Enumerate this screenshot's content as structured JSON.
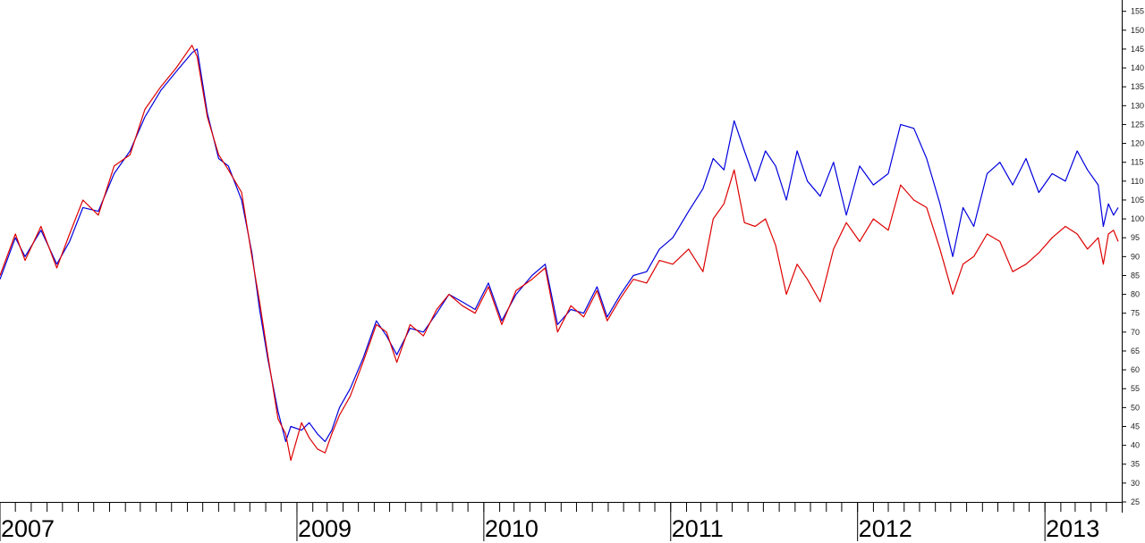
{
  "chart_data": {
    "type": "line",
    "title": "",
    "xlabel": "",
    "ylabel": "",
    "x_range": [
      "2007-06-01",
      "2013-05-24"
    ],
    "ylim": [
      25,
      158
    ],
    "y_axis_side": "right",
    "y_ticks": [
      25,
      30,
      35,
      40,
      45,
      50,
      55,
      60,
      65,
      70,
      75,
      80,
      85,
      90,
      95,
      100,
      105,
      110,
      115,
      120,
      125,
      130,
      135,
      140,
      145,
      150,
      155
    ],
    "x_tick_labels": [
      {
        "date": "2007-06-01",
        "label": "2007"
      },
      {
        "date": "2009-01-01",
        "label": "2009"
      },
      {
        "date": "2010-01-01",
        "label": "2010"
      },
      {
        "date": "2011-01-01",
        "label": "2011"
      },
      {
        "date": "2012-01-01",
        "label": "2012"
      },
      {
        "date": "2013-01-01",
        "label": "2013"
      }
    ],
    "grid": false,
    "legend": "none",
    "series": [
      {
        "color": "#0000dd",
        "points": [
          [
            "2007-06-01",
            84
          ],
          [
            "2007-07-01",
            95
          ],
          [
            "2007-07-20",
            90
          ],
          [
            "2007-08-20",
            97
          ],
          [
            "2007-09-20",
            88
          ],
          [
            "2007-10-15",
            94
          ],
          [
            "2007-11-10",
            103
          ],
          [
            "2007-12-10",
            102
          ],
          [
            "2008-01-10",
            112
          ],
          [
            "2008-02-10",
            118
          ],
          [
            "2008-03-10",
            127
          ],
          [
            "2008-04-10",
            134
          ],
          [
            "2008-05-10",
            139
          ],
          [
            "2008-06-10",
            144
          ],
          [
            "2008-06-20",
            145
          ],
          [
            "2008-07-10",
            128
          ],
          [
            "2008-08-01",
            116
          ],
          [
            "2008-08-20",
            114
          ],
          [
            "2008-09-15",
            105
          ],
          [
            "2008-10-05",
            91
          ],
          [
            "2008-10-20",
            76
          ],
          [
            "2008-11-05",
            63
          ],
          [
            "2008-11-25",
            49
          ],
          [
            "2008-12-10",
            41
          ],
          [
            "2008-12-20",
            45
          ],
          [
            "2009-01-10",
            44
          ],
          [
            "2009-01-25",
            46
          ],
          [
            "2009-02-10",
            43
          ],
          [
            "2009-02-25",
            41
          ],
          [
            "2009-03-10",
            44
          ],
          [
            "2009-03-25",
            50
          ],
          [
            "2009-04-15",
            55
          ],
          [
            "2009-05-10",
            63
          ],
          [
            "2009-06-05",
            73
          ],
          [
            "2009-06-25",
            69
          ],
          [
            "2009-07-15",
            64
          ],
          [
            "2009-08-10",
            71
          ],
          [
            "2009-09-05",
            70
          ],
          [
            "2009-10-01",
            75
          ],
          [
            "2009-10-25",
            80
          ],
          [
            "2009-11-20",
            78
          ],
          [
            "2009-12-15",
            76
          ],
          [
            "2010-01-10",
            83
          ],
          [
            "2010-02-05",
            73
          ],
          [
            "2010-03-05",
            80
          ],
          [
            "2010-04-05",
            85
          ],
          [
            "2010-05-01",
            88
          ],
          [
            "2010-05-25",
            72
          ],
          [
            "2010-06-20",
            76
          ],
          [
            "2010-07-15",
            75
          ],
          [
            "2010-08-10",
            82
          ],
          [
            "2010-08-30",
            74
          ],
          [
            "2010-09-25",
            80
          ],
          [
            "2010-10-20",
            85
          ],
          [
            "2010-11-15",
            86
          ],
          [
            "2010-12-10",
            92
          ],
          [
            "2011-01-05",
            95
          ],
          [
            "2011-02-05",
            102
          ],
          [
            "2011-03-05",
            108
          ],
          [
            "2011-03-25",
            116
          ],
          [
            "2011-04-15",
            113
          ],
          [
            "2011-05-05",
            126
          ],
          [
            "2011-05-25",
            118
          ],
          [
            "2011-06-15",
            110
          ],
          [
            "2011-07-05",
            118
          ],
          [
            "2011-07-25",
            114
          ],
          [
            "2011-08-15",
            105
          ],
          [
            "2011-09-05",
            118
          ],
          [
            "2011-09-25",
            110
          ],
          [
            "2011-10-20",
            106
          ],
          [
            "2011-11-15",
            115
          ],
          [
            "2011-12-10",
            101
          ],
          [
            "2012-01-05",
            114
          ],
          [
            "2012-02-01",
            109
          ],
          [
            "2012-03-01",
            112
          ],
          [
            "2012-03-25",
            125
          ],
          [
            "2012-04-20",
            124
          ],
          [
            "2012-05-15",
            116
          ],
          [
            "2012-06-10",
            104
          ],
          [
            "2012-07-05",
            90
          ],
          [
            "2012-07-25",
            103
          ],
          [
            "2012-08-15",
            98
          ],
          [
            "2012-09-10",
            112
          ],
          [
            "2012-10-05",
            115
          ],
          [
            "2012-10-30",
            109
          ],
          [
            "2012-11-25",
            116
          ],
          [
            "2012-12-20",
            107
          ],
          [
            "2013-01-15",
            112
          ],
          [
            "2013-02-10",
            110
          ],
          [
            "2013-03-05",
            118
          ],
          [
            "2013-03-25",
            113
          ],
          [
            "2013-04-15",
            109
          ],
          [
            "2013-04-25",
            98
          ],
          [
            "2013-05-05",
            104
          ],
          [
            "2013-05-15",
            101
          ],
          [
            "2013-05-24",
            103
          ]
        ]
      },
      {
        "color": "#dd0000",
        "points": [
          [
            "2007-06-01",
            85
          ],
          [
            "2007-07-01",
            96
          ],
          [
            "2007-07-20",
            89
          ],
          [
            "2007-08-20",
            98
          ],
          [
            "2007-09-20",
            87
          ],
          [
            "2007-10-15",
            96
          ],
          [
            "2007-11-10",
            105
          ],
          [
            "2007-12-10",
            101
          ],
          [
            "2008-01-10",
            114
          ],
          [
            "2008-02-10",
            117
          ],
          [
            "2008-03-10",
            129
          ],
          [
            "2008-04-10",
            135
          ],
          [
            "2008-05-10",
            140
          ],
          [
            "2008-06-10",
            146
          ],
          [
            "2008-06-20",
            143
          ],
          [
            "2008-07-10",
            127
          ],
          [
            "2008-08-01",
            117
          ],
          [
            "2008-08-20",
            113
          ],
          [
            "2008-09-15",
            107
          ],
          [
            "2008-10-05",
            90
          ],
          [
            "2008-10-20",
            78
          ],
          [
            "2008-11-05",
            64
          ],
          [
            "2008-11-25",
            47
          ],
          [
            "2008-12-10",
            43
          ],
          [
            "2008-12-20",
            36
          ],
          [
            "2009-01-10",
            46
          ],
          [
            "2009-01-25",
            42
          ],
          [
            "2009-02-10",
            39
          ],
          [
            "2009-02-25",
            38
          ],
          [
            "2009-03-10",
            43
          ],
          [
            "2009-03-25",
            48
          ],
          [
            "2009-04-15",
            53
          ],
          [
            "2009-05-10",
            62
          ],
          [
            "2009-06-05",
            72
          ],
          [
            "2009-06-25",
            70
          ],
          [
            "2009-07-15",
            62
          ],
          [
            "2009-08-10",
            72
          ],
          [
            "2009-09-05",
            69
          ],
          [
            "2009-10-01",
            76
          ],
          [
            "2009-10-25",
            80
          ],
          [
            "2009-11-20",
            77
          ],
          [
            "2009-12-15",
            75
          ],
          [
            "2010-01-10",
            82
          ],
          [
            "2010-02-05",
            72
          ],
          [
            "2010-03-05",
            81
          ],
          [
            "2010-04-05",
            84
          ],
          [
            "2010-05-01",
            87
          ],
          [
            "2010-05-25",
            70
          ],
          [
            "2010-06-20",
            77
          ],
          [
            "2010-07-15",
            74
          ],
          [
            "2010-08-10",
            81
          ],
          [
            "2010-08-30",
            73
          ],
          [
            "2010-09-25",
            79
          ],
          [
            "2010-10-20",
            84
          ],
          [
            "2010-11-15",
            83
          ],
          [
            "2010-12-10",
            89
          ],
          [
            "2011-01-05",
            88
          ],
          [
            "2011-02-05",
            92
          ],
          [
            "2011-03-05",
            86
          ],
          [
            "2011-03-25",
            100
          ],
          [
            "2011-04-15",
            104
          ],
          [
            "2011-05-05",
            113
          ],
          [
            "2011-05-25",
            99
          ],
          [
            "2011-06-15",
            98
          ],
          [
            "2011-07-05",
            100
          ],
          [
            "2011-07-25",
            93
          ],
          [
            "2011-08-15",
            80
          ],
          [
            "2011-09-05",
            88
          ],
          [
            "2011-09-25",
            84
          ],
          [
            "2011-10-20",
            78
          ],
          [
            "2011-11-15",
            92
          ],
          [
            "2011-12-10",
            99
          ],
          [
            "2012-01-05",
            94
          ],
          [
            "2012-02-01",
            100
          ],
          [
            "2012-03-01",
            97
          ],
          [
            "2012-03-25",
            109
          ],
          [
            "2012-04-20",
            105
          ],
          [
            "2012-05-15",
            103
          ],
          [
            "2012-06-10",
            92
          ],
          [
            "2012-07-05",
            80
          ],
          [
            "2012-07-25",
            88
          ],
          [
            "2012-08-15",
            90
          ],
          [
            "2012-09-10",
            96
          ],
          [
            "2012-10-05",
            94
          ],
          [
            "2012-10-30",
            86
          ],
          [
            "2012-11-25",
            88
          ],
          [
            "2012-12-20",
            91
          ],
          [
            "2013-01-15",
            95
          ],
          [
            "2013-02-10",
            98
          ],
          [
            "2013-03-05",
            96
          ],
          [
            "2013-03-25",
            92
          ],
          [
            "2013-04-15",
            95
          ],
          [
            "2013-04-25",
            88
          ],
          [
            "2013-05-05",
            96
          ],
          [
            "2013-05-15",
            97
          ],
          [
            "2013-05-24",
            94
          ]
        ]
      }
    ]
  }
}
